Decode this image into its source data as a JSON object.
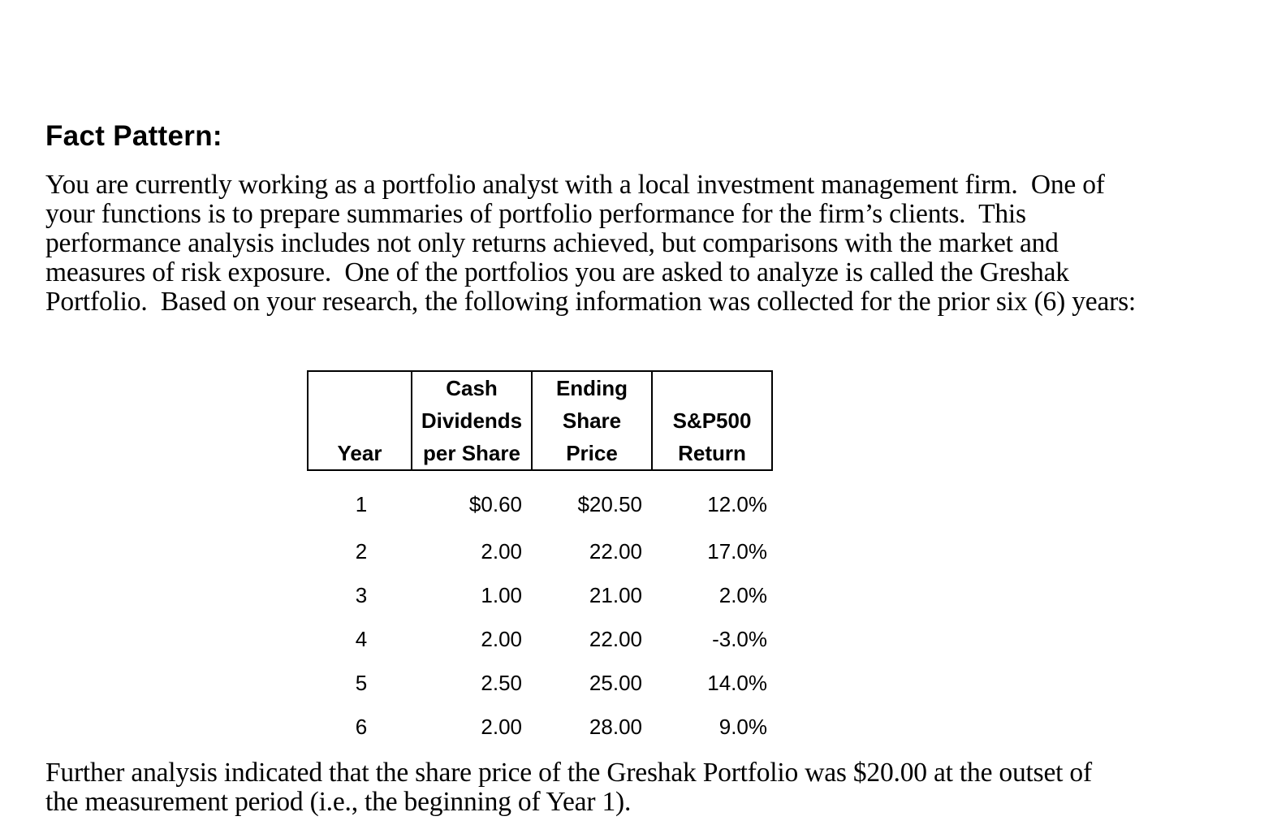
{
  "heading": "Fact Pattern:",
  "intro_paragraph": {
    "lines": [
      "You are currently working as a portfolio analyst with a local investment management firm.  One of",
      "your functions is to prepare summaries of portfolio performance for the firm’s clients.  This",
      "performance analysis includes not only returns achieved, but comparisons with the market and",
      "measures of risk exposure.  One of the portfolios you are asked to analyze is called the Greshak",
      "Portfolio.  Based on your research, the following information was collected for the prior six (6) years:"
    ]
  },
  "table": {
    "headers": [
      {
        "lines": [
          "Year"
        ]
      },
      {
        "lines": [
          "Cash",
          "Dividends",
          "per Share"
        ]
      },
      {
        "lines": [
          "Ending",
          "Share",
          "Price"
        ]
      },
      {
        "lines": [
          "S&P500",
          "Return"
        ]
      }
    ],
    "rows": [
      {
        "year": "1",
        "dividends": "$0.60",
        "price": "$20.50",
        "sp500": "12.0%"
      },
      {
        "year": "2",
        "dividends": "2.00",
        "price": "22.00",
        "sp500": "17.0%"
      },
      {
        "year": "3",
        "dividends": "1.00",
        "price": "21.00",
        "sp500": "2.0%"
      },
      {
        "year": "4",
        "dividends": "2.00",
        "price": "22.00",
        "sp500": "-3.0%"
      },
      {
        "year": "5",
        "dividends": "2.50",
        "price": "25.00",
        "sp500": "14.0%"
      },
      {
        "year": "6",
        "dividends": "2.00",
        "price": "28.00",
        "sp500": "9.0%"
      }
    ]
  },
  "closing_paragraph": {
    "lines": [
      "Further analysis indicated that the share price of the Greshak Portfolio was $20.00 at the outset of",
      "the measurement period (i.e., the beginning of Year 1)."
    ]
  }
}
